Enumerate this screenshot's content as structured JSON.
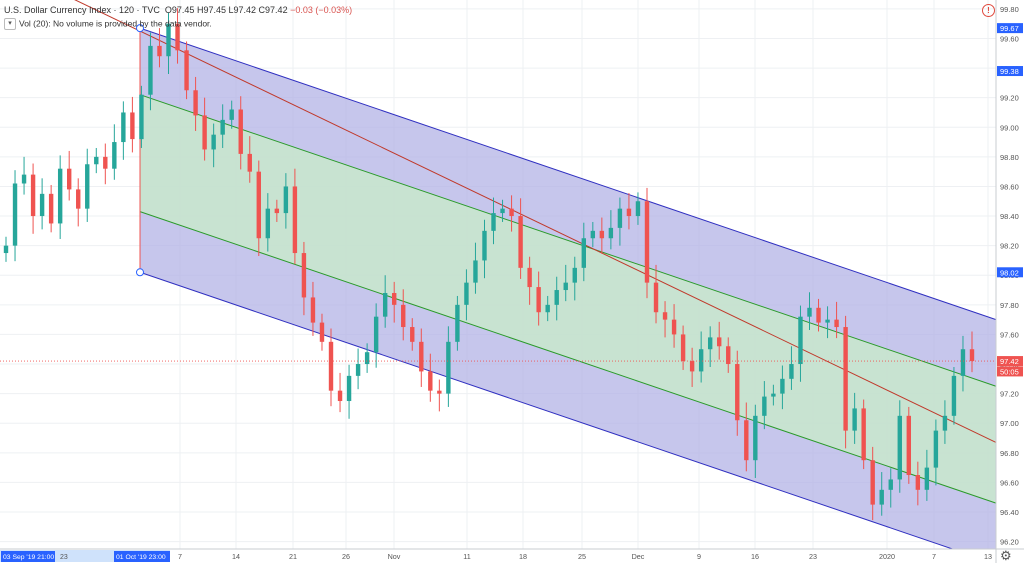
{
  "header": {
    "symbol": "U.S. Dollar Currency Index · 120 · TVC",
    "o": "O97.45",
    "h": "H97.45",
    "l": "L97.42",
    "c": "C97.42",
    "change": "−0.03 (−0.03%)",
    "volume_note": "Vol (20): No volume is provided by the data vendor."
  },
  "colors": {
    "up": "#26a69a",
    "down": "#ef5350",
    "outer_fill": "#b3b3e6",
    "inner_fill": "#c8ecc8",
    "outer_line": "#3030c0",
    "inner_line": "#2a9a2a",
    "median_line": "#c0392b",
    "accent": "#2962ff"
  },
  "icons": {
    "info": "info-icon",
    "settings": "gear-icon",
    "collapse": "chevron-down-icon"
  },
  "chart_data": {
    "type": "line",
    "title": "U.S. Dollar Currency Index · 120 · TVC",
    "xlabel": "",
    "ylabel": "",
    "ylim": [
      96.15,
      99.86
    ],
    "y_ticks": [
      "99.80",
      "99.60",
      "99.40",
      "99.20",
      "99.00",
      "98.80",
      "98.60",
      "98.40",
      "98.20",
      "98.00",
      "97.80",
      "97.60",
      "97.40",
      "97.20",
      "97.00",
      "96.80",
      "96.60",
      "96.40",
      "96.20"
    ],
    "x_ticks": [
      "7",
      "14",
      "21",
      "26",
      "Nov",
      "11",
      "18",
      "25",
      "Dec",
      "9",
      "16",
      "23",
      "2020",
      "7",
      "13"
    ],
    "x_time_labels": [
      "03 Sep '19   21:00",
      "23",
      "01 Oct '19   23:00"
    ],
    "price_tags": [
      {
        "label": "99.67",
        "price": 99.67
      },
      {
        "label": "99.38",
        "price": 99.38
      },
      {
        "label": "98.02",
        "price": 98.02
      },
      {
        "label": "97.42",
        "price": 97.42
      },
      {
        "label": "50:05",
        "price": 97.35
      }
    ],
    "series": [
      {
        "name": "U.S. Dollar Currency Index",
        "style": "candles",
        "values": [
          98.2,
          98.62,
          98.68,
          98.4,
          98.55,
          98.35,
          98.72,
          98.58,
          98.45,
          98.75,
          98.8,
          98.72,
          98.9,
          99.1,
          98.92,
          99.22,
          99.55,
          99.48,
          99.7,
          99.52,
          99.25,
          99.08,
          98.85,
          98.95,
          99.05,
          99.12,
          98.82,
          98.7,
          98.25,
          98.45,
          98.42,
          98.6,
          98.15,
          97.85,
          97.68,
          97.55,
          97.22,
          97.15,
          97.32,
          97.4,
          97.48,
          97.72,
          97.88,
          97.8,
          97.65,
          97.55,
          97.35,
          97.22,
          97.2,
          97.55,
          97.8,
          97.95,
          98.1,
          98.3,
          98.42,
          98.45,
          98.4,
          98.05,
          97.92,
          97.75,
          97.8,
          97.9,
          97.95,
          98.05,
          98.25,
          98.3,
          98.25,
          98.32,
          98.45,
          98.4,
          98.5,
          97.95,
          97.75,
          97.7,
          97.6,
          97.42,
          97.35,
          97.5,
          97.58,
          97.52,
          97.4,
          97.02,
          96.75,
          97.05,
          97.18,
          97.2,
          97.3,
          97.4,
          97.72,
          97.78,
          97.68,
          97.7,
          97.65,
          96.95,
          97.1,
          96.75,
          96.45,
          96.55,
          96.62,
          97.05,
          96.65,
          96.55,
          96.7,
          96.95,
          97.05,
          97.32,
          97.5,
          97.42
        ]
      }
    ],
    "channel": {
      "median": [
        [
          0,
          99.65
        ],
        [
          1,
          96.87
        ]
      ],
      "outer_upper": [
        [
          0,
          99.67
        ],
        [
          1,
          97.7
        ]
      ],
      "outer_lower": [
        [
          0,
          98.02
        ],
        [
          1,
          96.05
        ]
      ],
      "inner_upper": [
        [
          0,
          99.22
        ],
        [
          1,
          97.25
        ]
      ],
      "inner_lower": [
        [
          0,
          98.43
        ],
        [
          1,
          96.46
        ]
      ]
    },
    "grid": true,
    "legend": "top-left"
  }
}
